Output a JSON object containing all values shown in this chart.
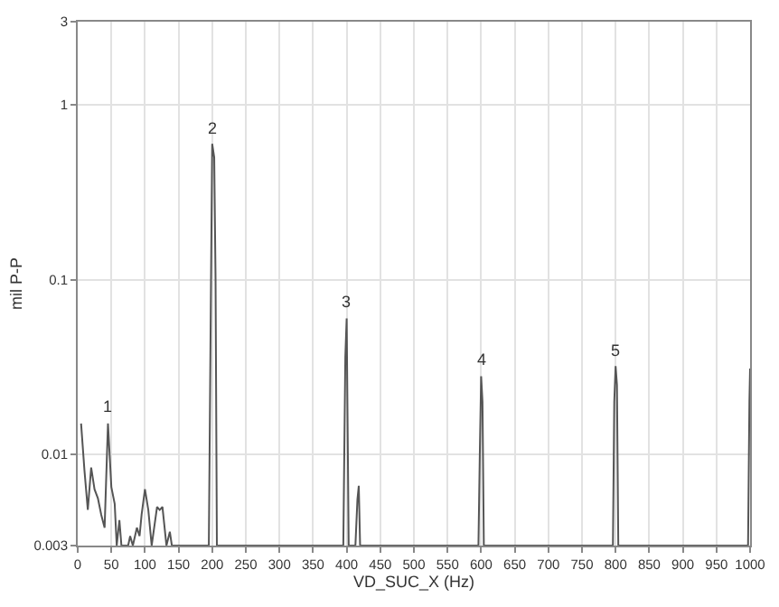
{
  "chart_data": {
    "type": "line",
    "xlabel": "VD_SUC_X (Hz)",
    "ylabel": "mil P-P",
    "log": "y",
    "grid": true,
    "marker": "none",
    "line_style": "solid",
    "xlim": [
      0,
      1000
    ],
    "xticks": [
      0,
      50,
      100,
      150,
      200,
      250,
      300,
      350,
      400,
      450,
      500,
      550,
      600,
      650,
      700,
      750,
      800,
      850,
      900,
      950,
      1000
    ],
    "ylim": [
      0.003,
      3
    ],
    "yticks": [
      0.003,
      0.01,
      0.1,
      1,
      3
    ],
    "series": [
      {
        "color": "#555555",
        "x": [
          5,
          10,
          15,
          20,
          25,
          30,
          35,
          40,
          45,
          50,
          55,
          58,
          62,
          65,
          75,
          78,
          82,
          88,
          92,
          95,
          100,
          105,
          110,
          118,
          122,
          126,
          132,
          137,
          140,
          195,
          198,
          200,
          203,
          205,
          207,
          395,
          398,
          400,
          403,
          413,
          416,
          418,
          420,
          596,
          598,
          600,
          602,
          604,
          796,
          798,
          800,
          802,
          804,
          997,
          999,
          1000
        ],
        "values": [
          0.015,
          0.0081,
          0.0048,
          0.0084,
          0.0063,
          0.0056,
          0.0045,
          0.0038,
          0.015,
          0.0065,
          0.0052,
          0.003,
          0.0042,
          0.003,
          0.003,
          0.0034,
          0.003,
          0.0038,
          0.0034,
          0.0045,
          0.0063,
          0.0048,
          0.003,
          0.005,
          0.0048,
          0.005,
          0.003,
          0.0036,
          0.003,
          0.003,
          0.077,
          0.6,
          0.5,
          0.1,
          0.003,
          0.003,
          0.036,
          0.06,
          0.003,
          0.003,
          0.0055,
          0.0066,
          0.003,
          0.003,
          0.01,
          0.028,
          0.02,
          0.003,
          0.003,
          0.02,
          0.032,
          0.025,
          0.003,
          0.003,
          0.02,
          0.031
        ]
      }
    ],
    "annotations": [
      {
        "text": "1",
        "x": 45,
        "y": 0.015
      },
      {
        "text": "2",
        "x": 200,
        "y": 0.6
      },
      {
        "text": "3",
        "x": 400,
        "y": 0.06
      },
      {
        "text": "4",
        "x": 600,
        "y": 0.028
      },
      {
        "text": "5",
        "x": 800,
        "y": 0.032
      }
    ]
  }
}
